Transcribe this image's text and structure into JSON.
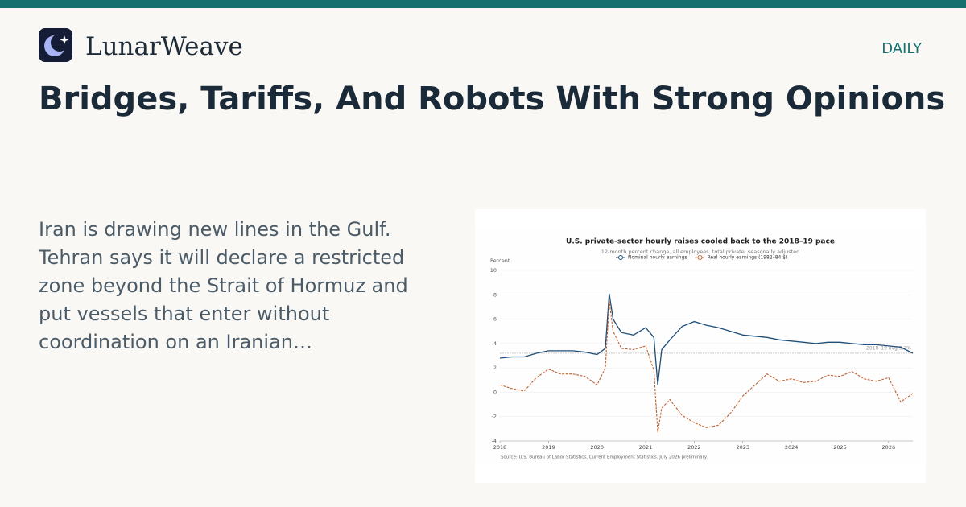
{
  "header": {
    "brand": "LunarWeave",
    "section": "DAILY"
  },
  "headline": "Bridges, Tariffs, And Robots With Strong Opinions",
  "summary": "Iran is drawing new lines in the Gulf. Tehran says it will declare a restricted zone beyond the Strait of Hormuz and put vessels that enter without coordination on an Iranian…",
  "chart_data": {
    "type": "line",
    "title": "U.S. private-sector hourly raises cooled back to the 2018–19 pace",
    "subtitle": "12-month percent change, all employees, total private, seasonally adjusted",
    "ylabel": "Percent",
    "source": "Source: U.S. Bureau of Labor Statistics, Current Employment Statistics. July 2026 preliminary.",
    "x": [
      2018.0,
      2018.25,
      2018.5,
      2018.75,
      2019.0,
      2019.25,
      2019.5,
      2019.75,
      2020.0,
      2020.17,
      2020.25,
      2020.33,
      2020.5,
      2020.75,
      2021.0,
      2021.17,
      2021.25,
      2021.33,
      2021.5,
      2021.75,
      2022.0,
      2022.25,
      2022.5,
      2022.75,
      2023.0,
      2023.25,
      2023.5,
      2023.75,
      2024.0,
      2024.25,
      2024.5,
      2024.75,
      2025.0,
      2025.25,
      2025.5,
      2025.75,
      2026.0,
      2026.25,
      2026.5
    ],
    "series": [
      {
        "name": "Nominal hourly earnings",
        "color": "#1f4e79",
        "dash": false,
        "values": [
          2.8,
          2.9,
          2.9,
          3.2,
          3.4,
          3.4,
          3.4,
          3.3,
          3.1,
          3.6,
          8.1,
          6.0,
          4.9,
          4.7,
          5.3,
          4.5,
          0.6,
          3.5,
          4.3,
          5.4,
          5.8,
          5.5,
          5.3,
          5.0,
          4.7,
          4.6,
          4.5,
          4.3,
          4.2,
          4.1,
          4.0,
          4.1,
          4.1,
          4.0,
          3.9,
          3.9,
          3.8,
          3.7,
          3.2
        ]
      },
      {
        "name": "Real hourly earnings (1982–84 $)",
        "color": "#c0622f",
        "dash": true,
        "values": [
          0.6,
          0.3,
          0.1,
          1.2,
          1.9,
          1.5,
          1.5,
          1.3,
          0.6,
          2.0,
          7.5,
          5.0,
          3.6,
          3.5,
          3.8,
          1.8,
          -3.3,
          -1.3,
          -0.6,
          -1.9,
          -2.5,
          -2.9,
          -2.7,
          -1.7,
          -0.3,
          0.6,
          1.5,
          0.9,
          1.1,
          0.8,
          0.9,
          1.4,
          1.3,
          1.7,
          1.1,
          0.9,
          1.2,
          -0.8,
          -0.1
        ]
      }
    ],
    "reference": {
      "value": 3.2,
      "label": "2018–19 avg 3.2%"
    },
    "xlim": [
      2018,
      2026.5
    ],
    "xticks": [
      2018,
      2019,
      2020,
      2021,
      2022,
      2023,
      2024,
      2025,
      2026
    ],
    "ylim": [
      -4,
      10
    ],
    "yticks": [
      -4,
      -2,
      0,
      2,
      4,
      6,
      8,
      10
    ],
    "grid": true
  }
}
